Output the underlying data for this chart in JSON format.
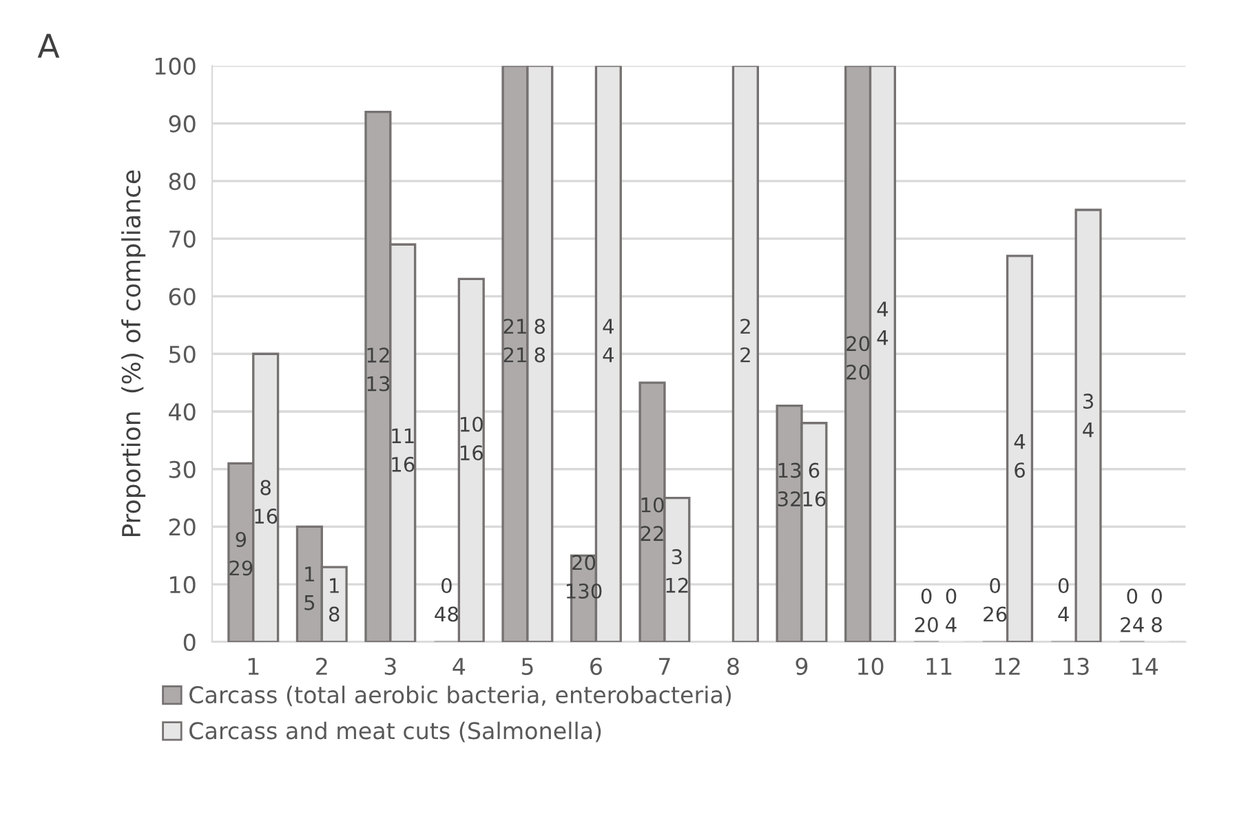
{
  "chart_data": {
    "type": "bar",
    "title": "A",
    "ylabel": "Proportion  (%) of compliance",
    "categories": [
      "1",
      "2",
      "3",
      "4",
      "5",
      "6",
      "7",
      "8",
      "9",
      "10",
      "11",
      "12",
      "13",
      "14"
    ],
    "series": [
      {
        "name": "Carcass (total aerobic bacteria, enterobacteria)",
        "color": "#aeaaaa",
        "values": [
          31,
          20,
          92,
          0,
          100,
          15,
          45,
          null,
          41,
          100,
          0,
          0,
          0,
          0
        ]
      },
      {
        "name": "Carcass and meat cuts (Salmonella)",
        "color": "#e7e6e6",
        "values": [
          50,
          13,
          69,
          63,
          100,
          100,
          25,
          100,
          38,
          100,
          0,
          67,
          75,
          0
        ]
      }
    ],
    "annotations": [
      {
        "text": "9\n29",
        "x": "1",
        "y": 15
      },
      {
        "text": "8\n16",
        "x": "1",
        "y": 24
      },
      {
        "text": "1\n5",
        "x": "2",
        "y": 9
      },
      {
        "text": "1\n8",
        "x": "2",
        "y": 7
      },
      {
        "text": "12\n13",
        "x": "3",
        "y": 47
      },
      {
        "text": "11\n16",
        "x": "3",
        "y": 33
      },
      {
        "text": "0\n48",
        "x": "4",
        "y": 7
      },
      {
        "text": "10\n16",
        "x": "4",
        "y": 35
      },
      {
        "text": "21\n21",
        "x": "5",
        "y": 52
      },
      {
        "text": "8\n8",
        "x": "5",
        "y": 52
      },
      {
        "text": "20\n130",
        "x": "6",
        "y": 11
      },
      {
        "text": "4\n4",
        "x": "6",
        "y": 52
      },
      {
        "text": "10\n22",
        "x": "7",
        "y": 21
      },
      {
        "text": "3\n12",
        "x": "7",
        "y": 12
      },
      {
        "text": "2\n2",
        "x": "8",
        "y": 52
      },
      {
        "text": "13\n32",
        "x": "9",
        "y": 27
      },
      {
        "text": "6\n16",
        "x": "9",
        "y": 27
      },
      {
        "text": "20\n20",
        "x": "10",
        "y": 49
      },
      {
        "text": "4\n4",
        "x": "10",
        "y": 55
      },
      {
        "text": "0\n20",
        "x": "11",
        "y": 0
      },
      {
        "text": "0\n4",
        "x": "11",
        "y": 0
      },
      {
        "text": "0\n26",
        "x": "12",
        "y": 7
      },
      {
        "text": "4\n6",
        "x": "12",
        "y": 32
      },
      {
        "text": "0\n4",
        "x": "13",
        "y": 7
      },
      {
        "text": "3\n4",
        "x": "13",
        "y": 39
      },
      {
        "text": "0\n24",
        "x": "14",
        "y": 0
      },
      {
        "text": "0\n8",
        "x": "14",
        "y": 0
      }
    ],
    "ylim": [
      0,
      100
    ],
    "yticks": [
      0,
      10,
      20,
      30,
      40,
      50,
      60,
      70,
      80,
      90,
      100
    ],
    "grid": "y",
    "legend": "bottom left"
  }
}
